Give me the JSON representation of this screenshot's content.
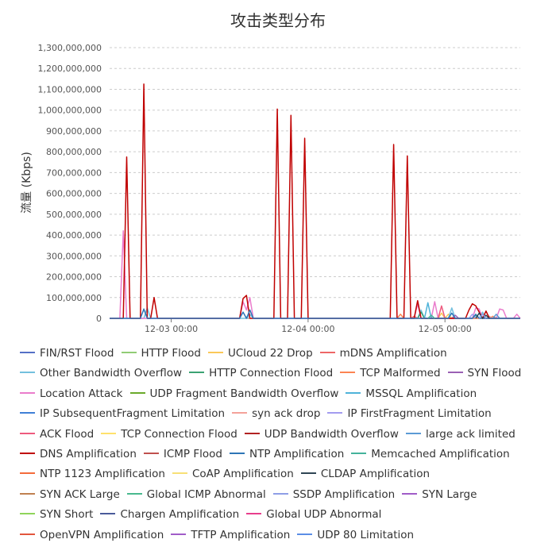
{
  "chart_data": {
    "type": "line",
    "title": "攻击类型分布",
    "ylabel": "流量 (Kbps)",
    "xlabel": "",
    "ylim": [
      0,
      1300000000
    ],
    "yticks": [
      "0",
      "100,000,000",
      "200,000,000",
      "300,000,000",
      "400,000,000",
      "500,000,000",
      "600,000,000",
      "700,000,000",
      "800,000,000",
      "900,000,000",
      "1,000,000,000",
      "1,100,000,000",
      "1,200,000,000",
      "1,300,000,000"
    ],
    "xlim": [
      0,
      120
    ],
    "xticks": [
      {
        "x": 18,
        "label": "12-03 00:00"
      },
      {
        "x": 58,
        "label": "12-04 00:00"
      },
      {
        "x": 98,
        "label": "12-05 00:00"
      }
    ],
    "grid": "horizontal-dashed",
    "legend_position": "bottom",
    "legend_rows": [
      [
        "FIN/RST Flood",
        "HTTP Flood",
        "UCloud 22 Drop",
        "mDNS Amplification"
      ],
      [
        "Other Bandwidth Overflow",
        "HTTP Connection Flood",
        "TCP Malformed",
        "SYN Flood"
      ],
      [
        "Location Attack",
        "UDP Fragment Bandwidth Overflow",
        "MSSQL Amplification"
      ],
      [
        "IP SubsequentFragment Limitation",
        "syn ack drop",
        "IP FirstFragment Limitation"
      ],
      [
        "ACK Flood",
        "TCP Connection Flood",
        "UDP Bandwidth Overflow",
        "large ack limited"
      ],
      [
        "DNS Amplification",
        "ICMP Flood",
        "NTP Amplification",
        "Memcached Amplification"
      ],
      [
        "NTP 1123 Amplification",
        "CoAP Amplification",
        "CLDAP Amplification"
      ],
      [
        "SYN ACK Large",
        "Global ICMP Abnormal",
        "SSDP Amplification",
        "SYN Large"
      ],
      [
        "SYN Short",
        "Chargen Amplification",
        "Global UDP Abnormal"
      ],
      [
        "OpenVPN Amplification",
        "TFTP Amplification",
        "UDP 80 Limitation"
      ]
    ],
    "series": [
      {
        "name": "FIN/RST Flood",
        "color": "#5470c6",
        "points": []
      },
      {
        "name": "HTTP Flood",
        "color": "#91cc75",
        "points": []
      },
      {
        "name": "UCloud 22 Drop",
        "color": "#fac858",
        "points": [
          [
            96,
            0
          ],
          [
            97,
            25000000
          ],
          [
            98,
            0
          ],
          [
            99,
            20000000
          ],
          [
            100,
            0
          ]
        ]
      },
      {
        "name": "mDNS Amplification",
        "color": "#ee6666",
        "points": [
          [
            88,
            0
          ],
          [
            89,
            10000000
          ],
          [
            90,
            0
          ]
        ]
      },
      {
        "name": "Other Bandwidth Overflow",
        "color": "#73c0de",
        "points": [
          [
            0,
            0
          ],
          [
            10,
            0
          ],
          [
            11,
            50000000
          ],
          [
            12,
            0
          ],
          [
            40,
            0
          ],
          [
            41,
            20000000
          ],
          [
            42,
            0
          ],
          [
            90,
            0
          ],
          [
            91,
            40000000
          ],
          [
            92,
            0
          ],
          [
            99,
            0
          ],
          [
            100,
            50000000
          ],
          [
            101,
            0
          ],
          [
            108,
            0
          ],
          [
            109,
            30000000
          ],
          [
            110,
            0
          ],
          [
            120,
            0
          ]
        ]
      },
      {
        "name": "HTTP Connection Flood",
        "color": "#3ba272",
        "points": [
          [
            90,
            0
          ],
          [
            91,
            30000000
          ],
          [
            92,
            0
          ],
          [
            106,
            0
          ],
          [
            107,
            15000000
          ],
          [
            108,
            0
          ]
        ]
      },
      {
        "name": "TCP Malformed",
        "color": "#fc8452",
        "points": [
          [
            84,
            0
          ],
          [
            85,
            20000000
          ],
          [
            86,
            0
          ],
          [
            111,
            0
          ],
          [
            112,
            10000000
          ],
          [
            113,
            0
          ]
        ]
      },
      {
        "name": "SYN Flood",
        "color": "#9a60b4",
        "points": [
          [
            100,
            0
          ],
          [
            101,
            15000000
          ],
          [
            102,
            0
          ]
        ]
      },
      {
        "name": "Location Attack",
        "color": "#ea7ccc",
        "points": [
          [
            0,
            0
          ],
          [
            3,
            0
          ],
          [
            4,
            420000000
          ],
          [
            5,
            0
          ],
          [
            38,
            0
          ],
          [
            39,
            80000000
          ],
          [
            40,
            40000000
          ],
          [
            41,
            100000000
          ],
          [
            42,
            0
          ],
          [
            89,
            0
          ],
          [
            90,
            70000000
          ],
          [
            91,
            0
          ],
          [
            94,
            0
          ],
          [
            95,
            80000000
          ],
          [
            96,
            0
          ],
          [
            106,
            0
          ],
          [
            107,
            50000000
          ],
          [
            108,
            45000000
          ],
          [
            109,
            0
          ],
          [
            113,
            0
          ],
          [
            114,
            45000000
          ],
          [
            115,
            40000000
          ],
          [
            116,
            0
          ],
          [
            118,
            0
          ],
          [
            119,
            20000000
          ],
          [
            120,
            0
          ]
        ]
      },
      {
        "name": "UDP Fragment Bandwidth Overflow",
        "color": "#6aaa2a",
        "points": []
      },
      {
        "name": "MSSQL Amplification",
        "color": "#4fb3d9",
        "points": [
          [
            92,
            0
          ],
          [
            93,
            75000000
          ],
          [
            94,
            0
          ]
        ]
      },
      {
        "name": "IP SubsequentFragment Limitation",
        "color": "#3f7fd6",
        "points": []
      },
      {
        "name": "syn ack drop",
        "color": "#f4a29a",
        "points": [
          [
            110,
            0
          ],
          [
            111,
            10000000
          ],
          [
            112,
            0
          ]
        ]
      },
      {
        "name": "IP FirstFragment Limitation",
        "color": "#a39cf0",
        "points": [
          [
            105,
            0
          ],
          [
            106,
            20000000
          ],
          [
            107,
            0
          ]
        ]
      },
      {
        "name": "ACK Flood",
        "color": "#ee5a7e",
        "points": [
          [
            96,
            0
          ],
          [
            97,
            60000000
          ],
          [
            98,
            0
          ]
        ]
      },
      {
        "name": "TCP Connection Flood",
        "color": "#ffe16b",
        "points": []
      },
      {
        "name": "UDP Bandwidth Overflow",
        "color": "#b22222",
        "points": []
      },
      {
        "name": "large ack limited",
        "color": "#5b9bd5",
        "points": [
          [
            112,
            0
          ],
          [
            113,
            20000000
          ],
          [
            114,
            0
          ]
        ]
      },
      {
        "name": "DNS Amplification",
        "color": "#c00000",
        "points": [
          [
            0,
            0
          ],
          [
            4,
            0
          ],
          [
            5,
            775000000
          ],
          [
            6,
            0
          ],
          [
            9,
            0
          ],
          [
            10,
            1125000000
          ],
          [
            11,
            0
          ],
          [
            12,
            0
          ],
          [
            13,
            100000000
          ],
          [
            14,
            0
          ],
          [
            38,
            0
          ],
          [
            39,
            95000000
          ],
          [
            40,
            110000000
          ],
          [
            41,
            0
          ],
          [
            48,
            0
          ],
          [
            49,
            1005000000
          ],
          [
            50,
            0
          ],
          [
            52,
            0
          ],
          [
            53,
            975000000
          ],
          [
            54,
            0
          ],
          [
            56,
            0
          ],
          [
            57,
            865000000
          ],
          [
            58,
            0
          ],
          [
            82,
            0
          ],
          [
            83,
            835000000
          ],
          [
            84,
            0
          ],
          [
            86,
            0
          ],
          [
            87,
            780000000
          ],
          [
            88,
            0
          ],
          [
            89,
            0
          ],
          [
            90,
            85000000
          ],
          [
            91,
            0
          ],
          [
            104,
            0
          ],
          [
            105,
            40000000
          ],
          [
            106,
            70000000
          ],
          [
            107,
            60000000
          ],
          [
            108,
            30000000
          ],
          [
            109,
            0
          ],
          [
            110,
            35000000
          ],
          [
            111,
            0
          ],
          [
            120,
            0
          ]
        ]
      },
      {
        "name": "ICMP Flood",
        "color": "#c0504d",
        "points": []
      },
      {
        "name": "NTP Amplification",
        "color": "#2e75b6",
        "points": [
          [
            0,
            0
          ],
          [
            9,
            0
          ],
          [
            10,
            45000000
          ],
          [
            11,
            0
          ],
          [
            38,
            0
          ],
          [
            39,
            30000000
          ],
          [
            40,
            0
          ],
          [
            41,
            40000000
          ],
          [
            42,
            0
          ],
          [
            99,
            0
          ],
          [
            100,
            25000000
          ],
          [
            101,
            0
          ],
          [
            106,
            0
          ],
          [
            107,
            20000000
          ],
          [
            108,
            0
          ],
          [
            120,
            0
          ]
        ]
      },
      {
        "name": "Memcached Amplification",
        "color": "#44b39b",
        "points": [
          [
            93,
            0
          ],
          [
            94,
            15000000
          ],
          [
            95,
            0
          ]
        ]
      },
      {
        "name": "NTP 1123 Amplification",
        "color": "#f46b3b",
        "points": []
      },
      {
        "name": "CoAP Amplification",
        "color": "#f8e076",
        "points": []
      },
      {
        "name": "CLDAP Amplification",
        "color": "#2f4554",
        "points": [
          [
            107,
            0
          ],
          [
            108,
            25000000
          ],
          [
            109,
            0
          ],
          [
            110,
            15000000
          ],
          [
            111,
            0
          ]
        ]
      },
      {
        "name": "SYN ACK Large",
        "color": "#c08050",
        "points": []
      },
      {
        "name": "Global ICMP Abnormal",
        "color": "#48b98e",
        "points": []
      },
      {
        "name": "SSDP Amplification",
        "color": "#8e9ee6",
        "points": [
          [
            108,
            0
          ],
          [
            109,
            20000000
          ],
          [
            110,
            0
          ]
        ]
      },
      {
        "name": "SYN Large",
        "color": "#a05cc8",
        "points": []
      },
      {
        "name": "SYN Short",
        "color": "#8fd45a",
        "points": []
      },
      {
        "name": "Chargen Amplification",
        "color": "#4a5a9a",
        "points": []
      },
      {
        "name": "Global UDP Abnormal",
        "color": "#e83e8c",
        "points": []
      },
      {
        "name": "OpenVPN Amplification",
        "color": "#e2553d",
        "points": []
      },
      {
        "name": "TFTP Amplification",
        "color": "#a05cc8",
        "points": []
      },
      {
        "name": "UDP 80 Limitation",
        "color": "#5b8ee6",
        "points": []
      }
    ]
  }
}
